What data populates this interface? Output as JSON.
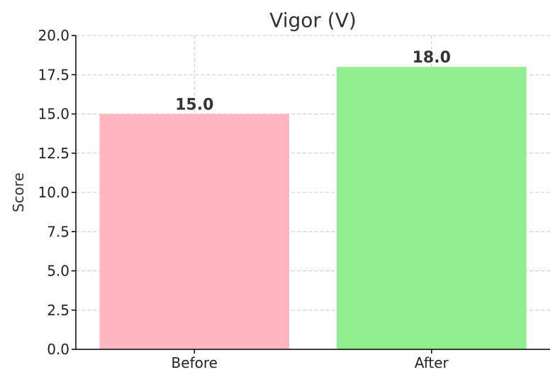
{
  "chart_data": {
    "type": "bar",
    "title": "Vigor (V)",
    "xlabel": "",
    "ylabel": "Score",
    "categories": [
      "Before",
      "After"
    ],
    "values": [
      15.0,
      18.0
    ],
    "value_labels": [
      "15.0",
      "18.0"
    ],
    "colors": [
      "#ffb6c1",
      "#90ee90"
    ],
    "ylim": [
      0,
      20
    ],
    "yticks": [
      0,
      2.5,
      5,
      7.5,
      10,
      12.5,
      15,
      17.5,
      20
    ],
    "ytick_labels": [
      "0.0",
      "2.5",
      "5.0",
      "7.5",
      "10.0",
      "12.5",
      "15.0",
      "17.5",
      "20.0"
    ],
    "grid": true
  }
}
